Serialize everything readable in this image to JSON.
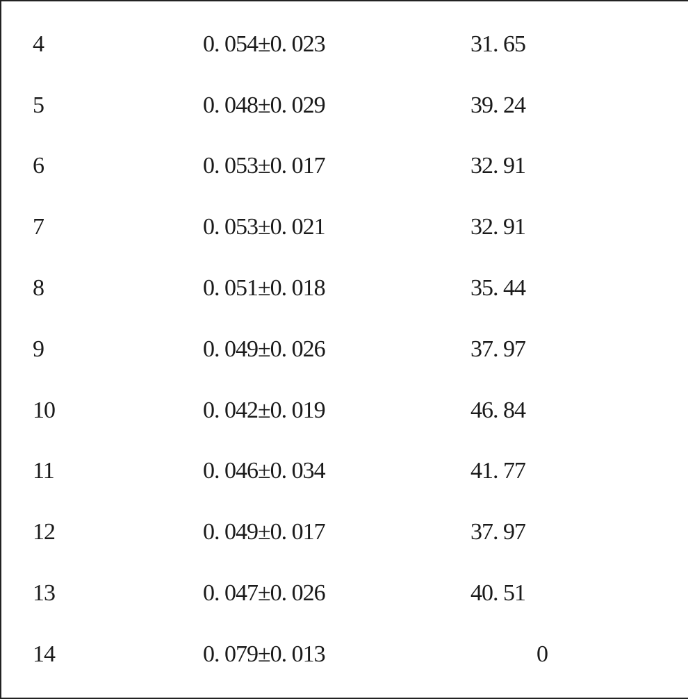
{
  "table": {
    "text_color": "#1a1a1a",
    "background_color": "#ffffff",
    "border_color": "#222222",
    "font_size": 34,
    "rows": [
      {
        "c1": "4",
        "c2": "0. 054±0. 023",
        "c3": "31. 65"
      },
      {
        "c1": "5",
        "c2": "0. 048±0. 029",
        "c3": "39. 24"
      },
      {
        "c1": "6",
        "c2": "0. 053±0. 017",
        "c3": "32. 91"
      },
      {
        "c1": "7",
        "c2": "0. 053±0. 021",
        "c3": "32. 91"
      },
      {
        "c1": "8",
        "c2": "0. 051±0. 018",
        "c3": "35. 44"
      },
      {
        "c1": "9",
        "c2": "0. 049±0. 026",
        "c3": "37. 97"
      },
      {
        "c1": "10",
        "c2": "0. 042±0. 019",
        "c3": "46. 84"
      },
      {
        "c1": "11",
        "c2": "0. 046±0. 034",
        "c3": "41. 77"
      },
      {
        "c1": "12",
        "c2": "0. 049±0. 017",
        "c3": "37. 97"
      },
      {
        "c1": "13",
        "c2": "0. 047±0. 026",
        "c3": "40. 51"
      },
      {
        "c1": "14",
        "c2": "0. 079±0. 013",
        "c3": "0"
      }
    ]
  }
}
